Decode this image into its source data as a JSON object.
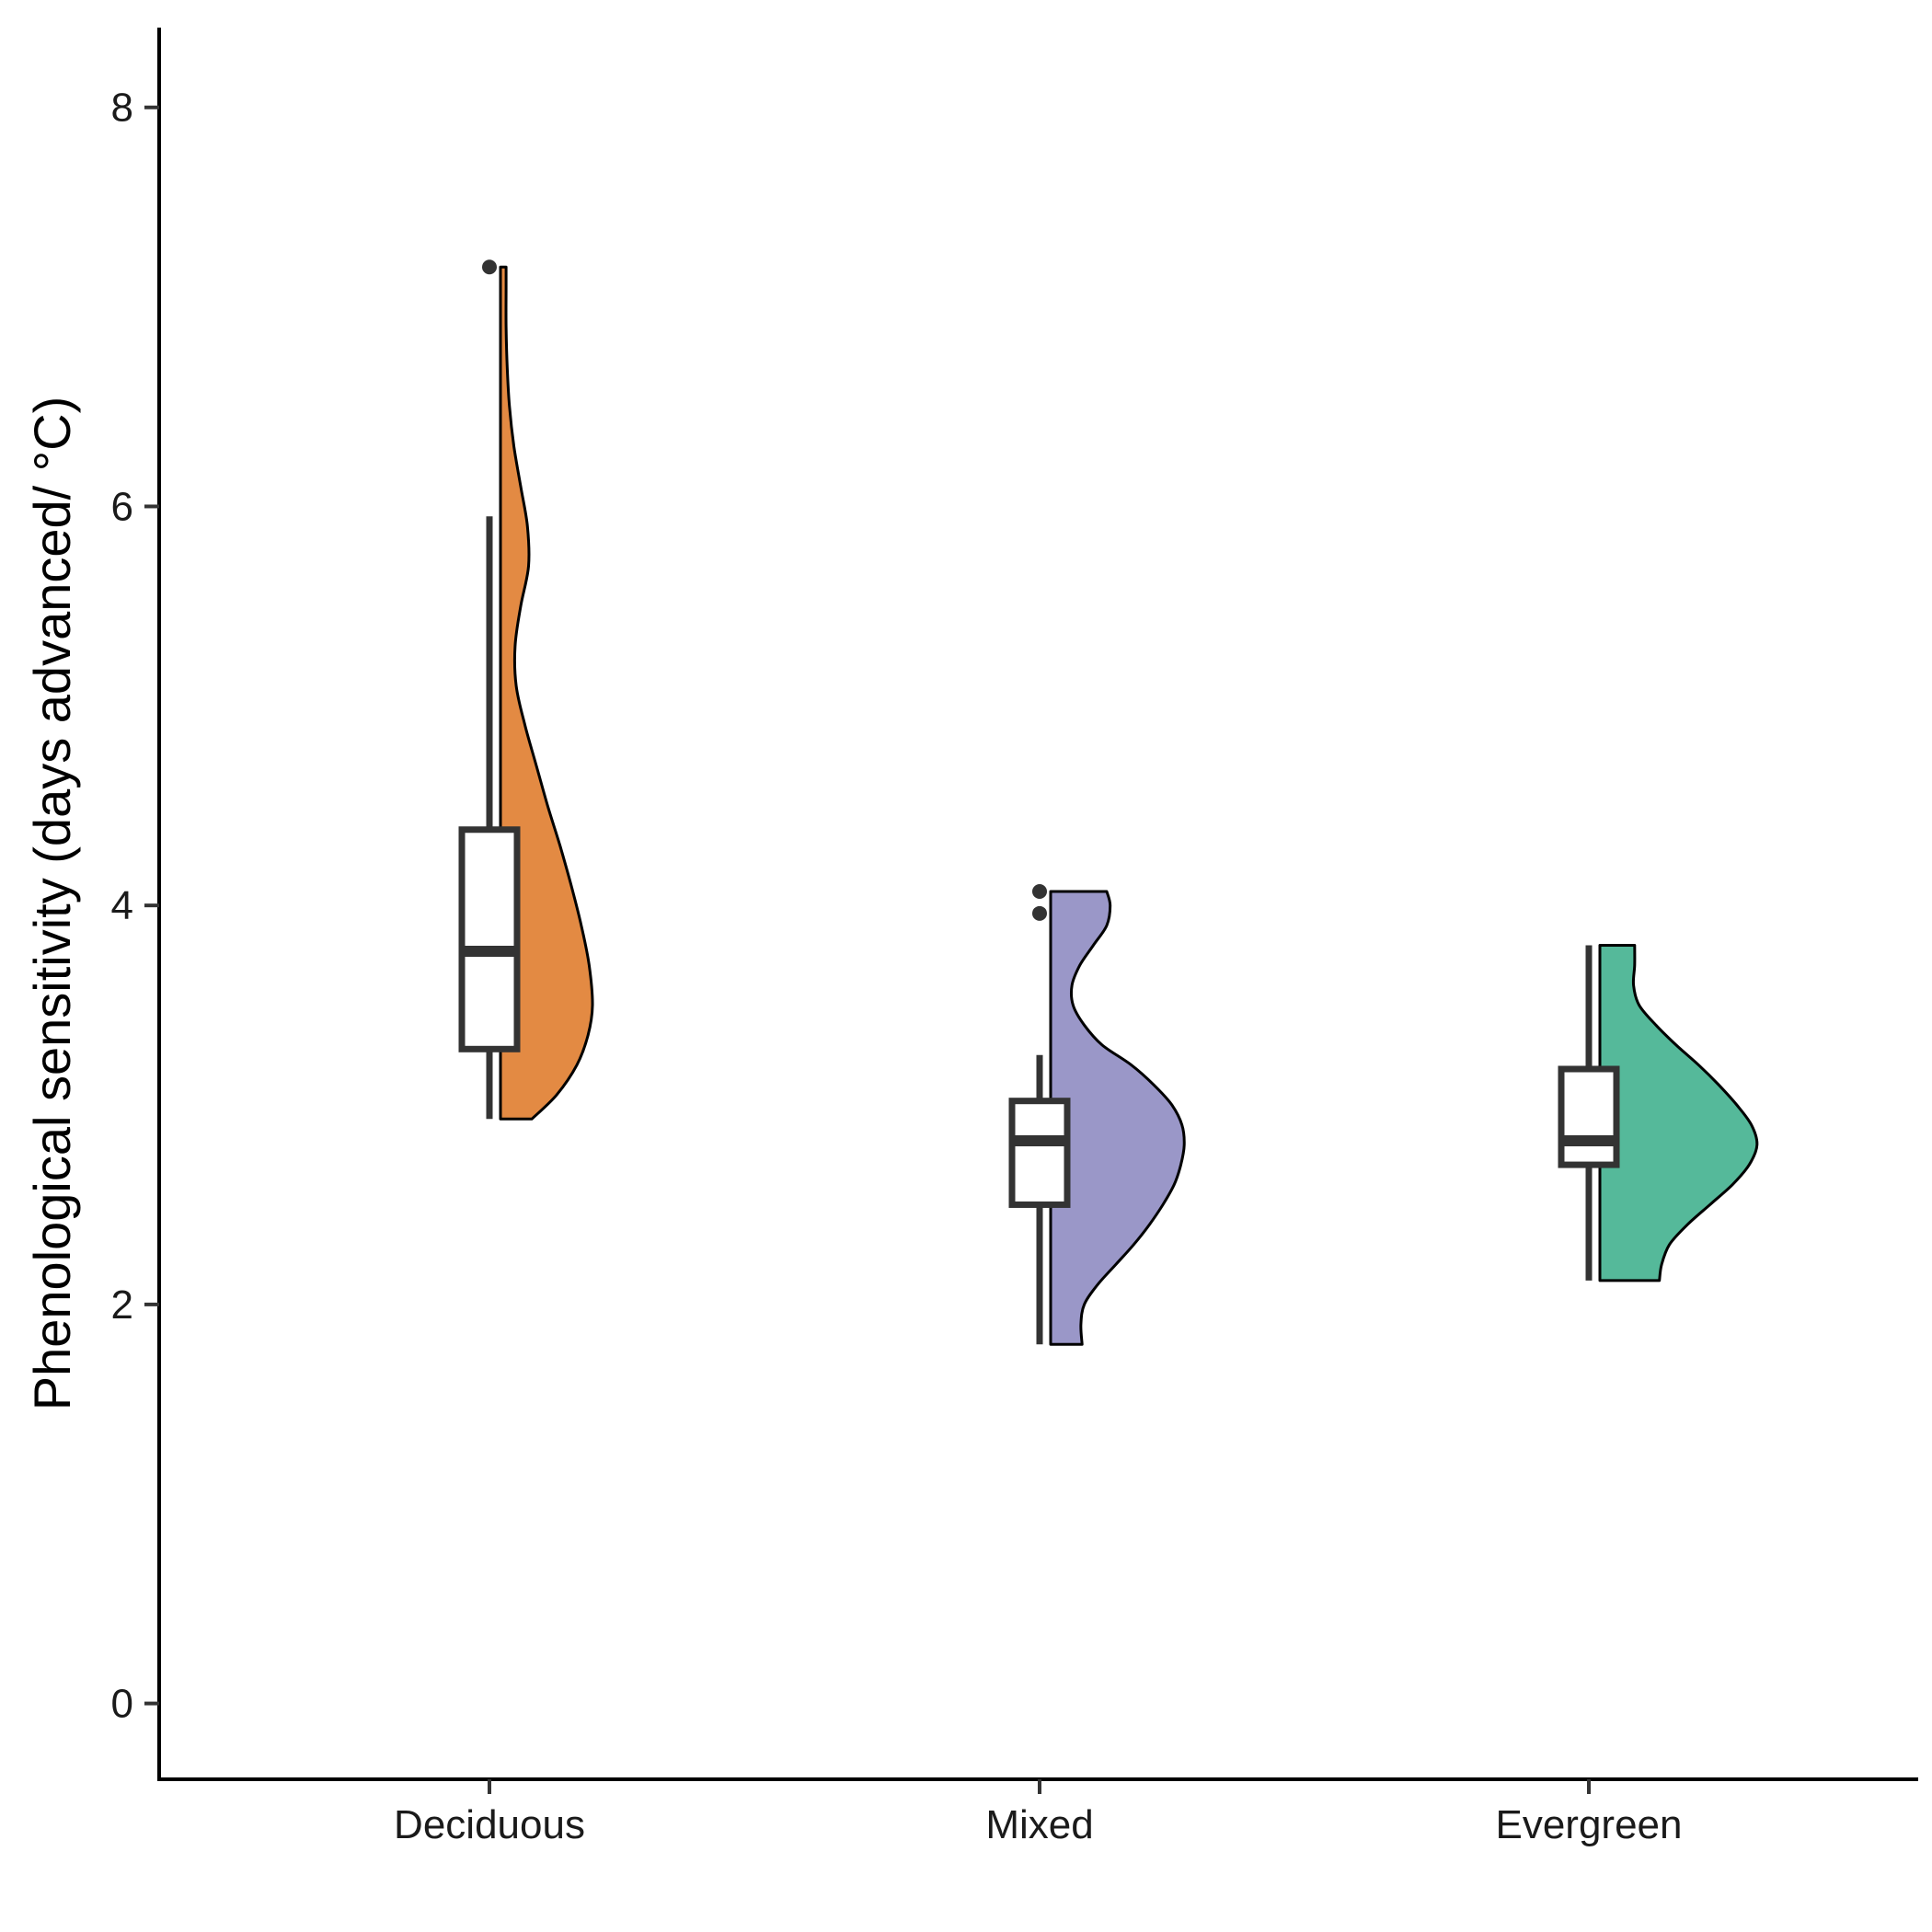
{
  "chart_data": {
    "type": "raincloud",
    "title": "",
    "xlabel": "",
    "ylabel": "Phenological sensitivity (days advanced/ °C)",
    "ylim": [
      -0.38,
      8.4
    ],
    "y_ticks": [
      0,
      2,
      4,
      6,
      8
    ],
    "categories": [
      "Deciduous",
      "Mixed",
      "Evergreen"
    ],
    "grid": false,
    "legend": "none",
    "series": [
      {
        "category": "Deciduous",
        "color": "#E38A43",
        "box": {
          "whisker_low": 2.93,
          "q1": 3.28,
          "median": 3.77,
          "q3": 4.38,
          "whisker_high": 5.95
        },
        "outliers": [
          7.2
        ],
        "density": [
          [
            2.93,
            0.28
          ],
          [
            3.05,
            0.5
          ],
          [
            3.2,
            0.68
          ],
          [
            3.35,
            0.78
          ],
          [
            3.5,
            0.82
          ],
          [
            3.7,
            0.79
          ],
          [
            3.9,
            0.72
          ],
          [
            4.1,
            0.63
          ],
          [
            4.3,
            0.53
          ],
          [
            4.5,
            0.42
          ],
          [
            4.7,
            0.32
          ],
          [
            4.9,
            0.22
          ],
          [
            5.1,
            0.14
          ],
          [
            5.3,
            0.13
          ],
          [
            5.5,
            0.18
          ],
          [
            5.7,
            0.25
          ],
          [
            5.9,
            0.24
          ],
          [
            6.1,
            0.18
          ],
          [
            6.3,
            0.12
          ],
          [
            6.5,
            0.08
          ],
          [
            6.7,
            0.06
          ],
          [
            6.9,
            0.05
          ],
          [
            7.1,
            0.05
          ],
          [
            7.2,
            0.05
          ]
        ]
      },
      {
        "category": "Mixed",
        "color": "#9A97C8",
        "box": {
          "whisker_low": 1.8,
          "q1": 2.5,
          "median": 2.82,
          "q3": 3.02,
          "whisker_high": 3.25
        },
        "outliers": [
          4.07,
          3.96
        ],
        "density": [
          [
            1.8,
            0.28
          ],
          [
            1.9,
            0.27
          ],
          [
            2.0,
            0.3
          ],
          [
            2.1,
            0.42
          ],
          [
            2.2,
            0.58
          ],
          [
            2.3,
            0.74
          ],
          [
            2.4,
            0.88
          ],
          [
            2.5,
            1.0
          ],
          [
            2.6,
            1.1
          ],
          [
            2.7,
            1.16
          ],
          [
            2.8,
            1.19
          ],
          [
            2.9,
            1.17
          ],
          [
            3.0,
            1.08
          ],
          [
            3.1,
            0.92
          ],
          [
            3.2,
            0.72
          ],
          [
            3.3,
            0.46
          ],
          [
            3.4,
            0.3
          ],
          [
            3.5,
            0.2
          ],
          [
            3.6,
            0.19
          ],
          [
            3.7,
            0.26
          ],
          [
            3.8,
            0.38
          ],
          [
            3.9,
            0.5
          ],
          [
            4.0,
            0.53
          ],
          [
            4.07,
            0.5
          ]
        ]
      },
      {
        "category": "Evergreen",
        "color": "#55B99A",
        "box": {
          "whisker_low": 2.12,
          "q1": 2.7,
          "median": 2.82,
          "q3": 3.18,
          "whisker_high": 3.8
        },
        "outliers": [],
        "density": [
          [
            2.12,
            0.53
          ],
          [
            2.2,
            0.55
          ],
          [
            2.3,
            0.62
          ],
          [
            2.4,
            0.78
          ],
          [
            2.5,
            0.98
          ],
          [
            2.6,
            1.18
          ],
          [
            2.7,
            1.33
          ],
          [
            2.8,
            1.4
          ],
          [
            2.9,
            1.35
          ],
          [
            3.0,
            1.22
          ],
          [
            3.1,
            1.06
          ],
          [
            3.2,
            0.88
          ],
          [
            3.3,
            0.68
          ],
          [
            3.4,
            0.5
          ],
          [
            3.5,
            0.35
          ],
          [
            3.6,
            0.3
          ],
          [
            3.7,
            0.31
          ],
          [
            3.8,
            0.31
          ]
        ]
      }
    ]
  }
}
